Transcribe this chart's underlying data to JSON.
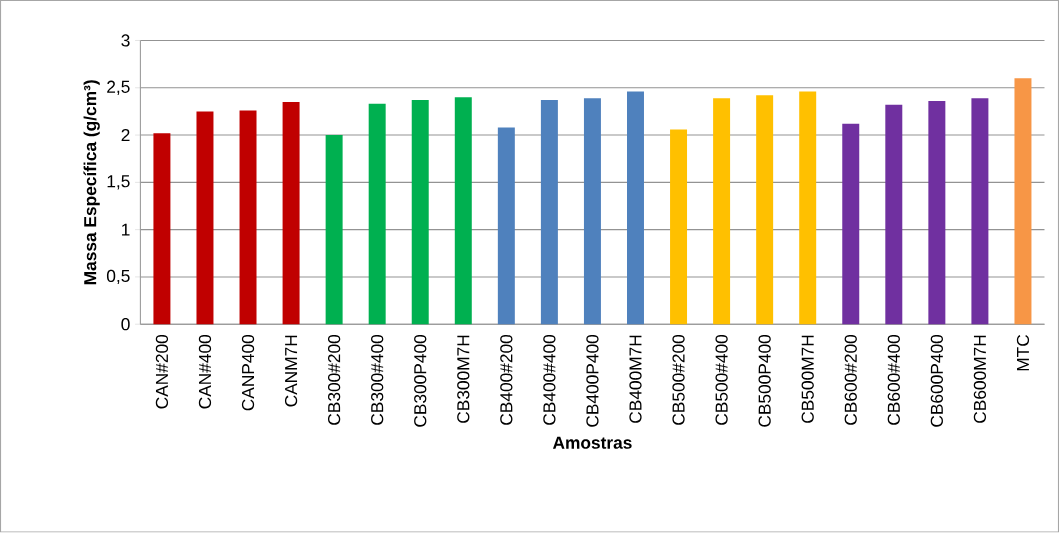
{
  "chart_data": {
    "type": "bar",
    "xlabel": "Amostras",
    "ylabel": "Massa Específica (g/cm³)",
    "categories": [
      "CAN#200",
      "CAN#400",
      "CANP400",
      "CANM7H",
      "CB300#200",
      "CB300#400",
      "CB300P400",
      "CB300M7H",
      "CB400#200",
      "CB400#400",
      "CB400P400",
      "CB400M7H",
      "CB500#200",
      "CB500#400",
      "CB500P400",
      "CB500M7H",
      "CB600#200",
      "CB600#400",
      "CB600P400",
      "CB600M7H",
      "MTC"
    ],
    "values": [
      2.02,
      2.25,
      2.26,
      2.35,
      2.0,
      2.33,
      2.37,
      2.4,
      2.08,
      2.37,
      2.39,
      2.46,
      2.06,
      2.39,
      2.42,
      2.46,
      2.12,
      2.32,
      2.36,
      2.39,
      2.6
    ],
    "colors": [
      "#c00000",
      "#c00000",
      "#c00000",
      "#c00000",
      "#00b050",
      "#00b050",
      "#00b050",
      "#00b050",
      "#4f81bd",
      "#4f81bd",
      "#4f81bd",
      "#4f81bd",
      "#ffc000",
      "#ffc000",
      "#ffc000",
      "#ffc000",
      "#7030a0",
      "#7030a0",
      "#7030a0",
      "#7030a0",
      "#f79646"
    ],
    "ylim": [
      0,
      3
    ],
    "yticks": [
      0,
      {
        "value": 0.5,
        "label": "0,5"
      },
      1,
      {
        "value": 1.5,
        "label": "1,5"
      },
      2,
      {
        "value": 2.5,
        "label": "2,5"
      },
      3
    ],
    "grid": "y"
  }
}
